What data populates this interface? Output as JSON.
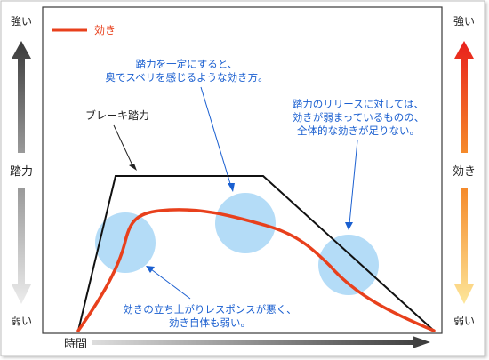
{
  "legend": {
    "label": "効き",
    "color": "#e8401c"
  },
  "left_axis": {
    "top": "強い",
    "middle": "踏力",
    "bottom": "弱い"
  },
  "right_axis": {
    "top": "強い",
    "middle": "効き",
    "bottom": "弱い"
  },
  "x_axis": {
    "label": "時間"
  },
  "curves": {
    "pedal_force_label": "ブレーキ踏力",
    "pedal_color": "#111111",
    "effect_color": "#e8401c"
  },
  "annotations": {
    "top_line1": "踏力を一定にすると、",
    "top_line2": "奥でスベリを感じるような効き方。",
    "right_line1": "踏力のリリースに対しては、",
    "right_line2": "効きが弱まっているものの、",
    "right_line3": "全体的な効きが足りない。",
    "bottom_line1": "効きの立ち上がりレスポンスが悪く、",
    "bottom_line2": "効き自体も弱い。",
    "text_color": "#1a5fd0"
  },
  "highlight_color": "#b4dcf7"
}
